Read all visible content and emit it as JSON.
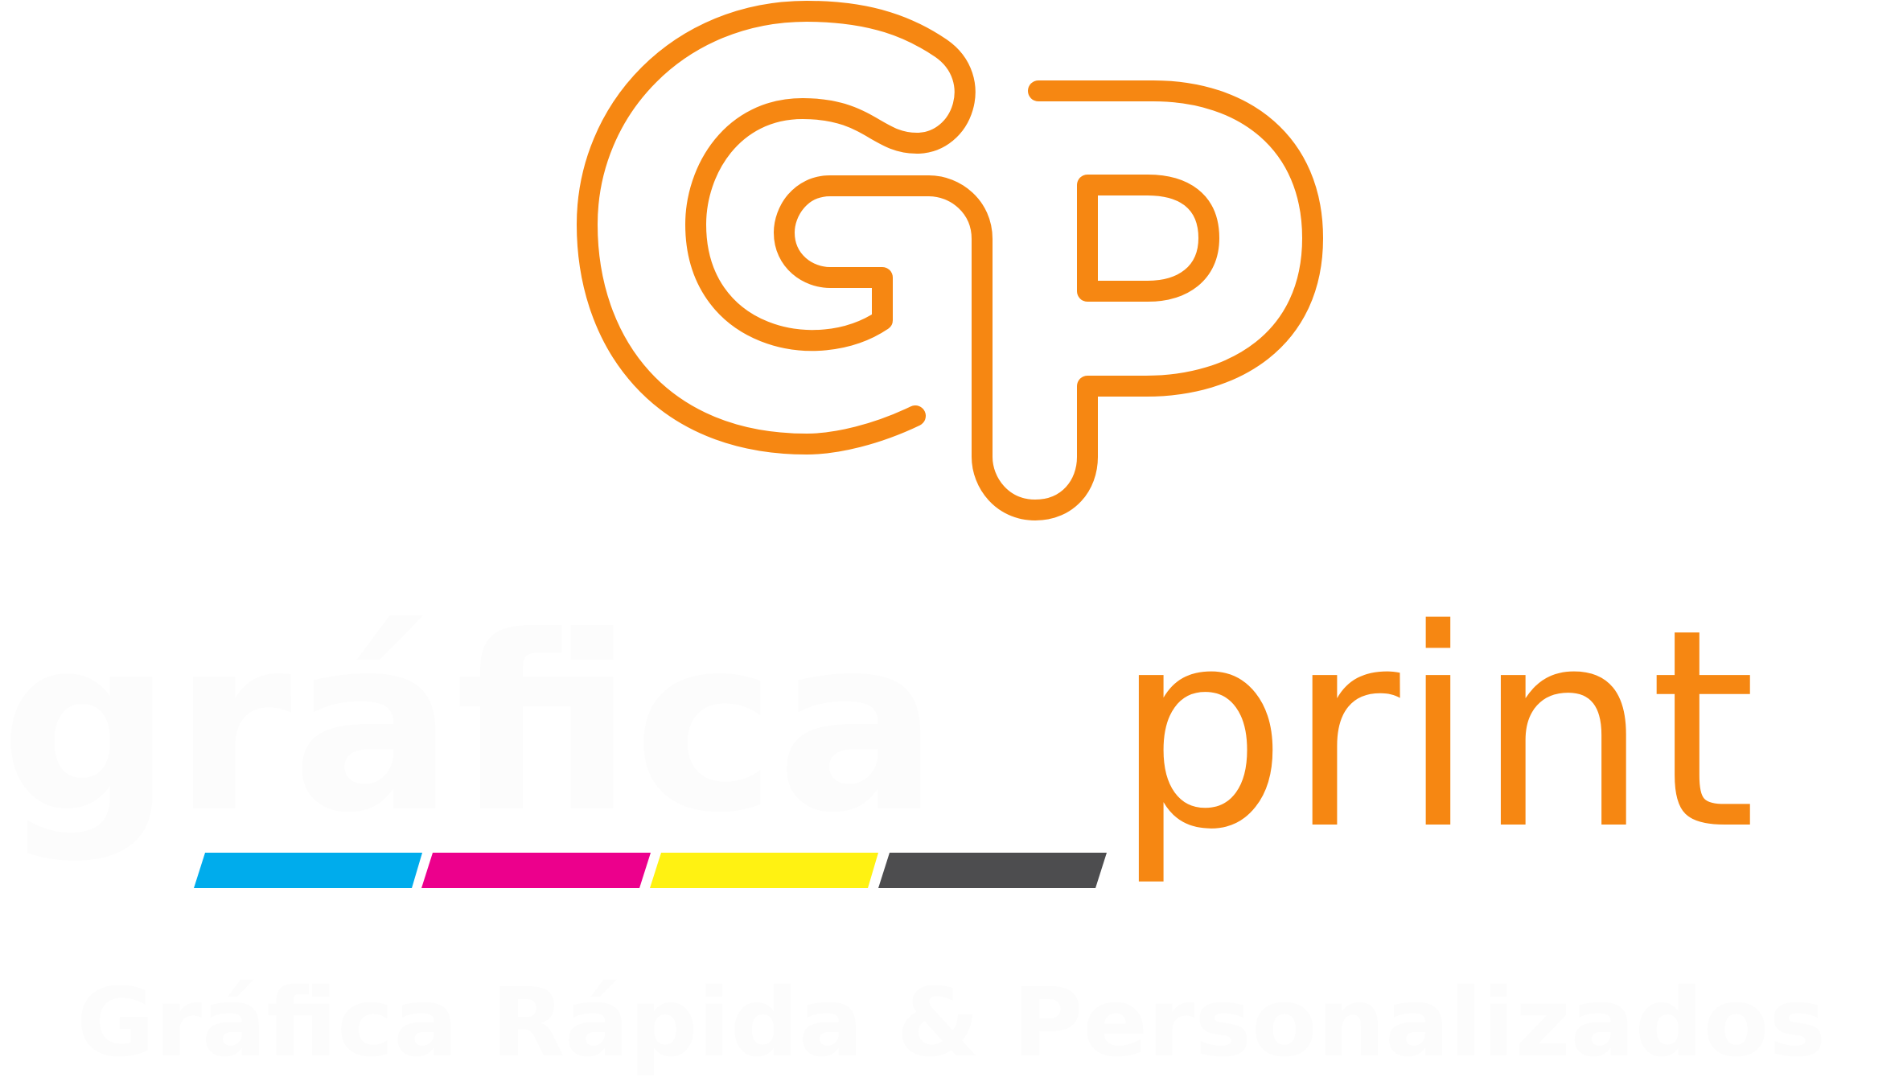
{
  "brand": {
    "word_grafica": "gráfica",
    "word_print": "print",
    "tagline": "Gráfica Rápida & Personalizados",
    "monogram_letters": "GP"
  },
  "colors": {
    "orange": "#F68712",
    "white": "#FCFCFC",
    "cyan": "#00ACEC",
    "magenta": "#EC008C",
    "yellow": "#FFF212",
    "black": "#4D4D4F"
  }
}
